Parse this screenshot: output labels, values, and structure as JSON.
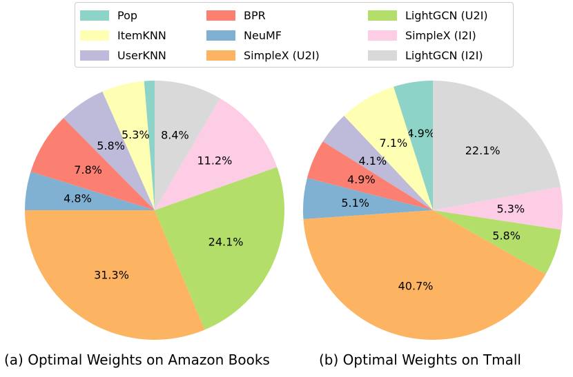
{
  "legend": [
    {
      "label": "Pop",
      "color": "#8dd3c7"
    },
    {
      "label": "ItemKNN",
      "color": "#ffffb3"
    },
    {
      "label": "UserKNN",
      "color": "#bebada"
    },
    {
      "label": "BPR",
      "color": "#fb8072"
    },
    {
      "label": "NeuMF",
      "color": "#80b1d3"
    },
    {
      "label": "SimpleX (U2I)",
      "color": "#fdb462"
    },
    {
      "label": "LightGCN (U2I)",
      "color": "#b3de69"
    },
    {
      "label": "SimpleX (I2I)",
      "color": "#fccde5"
    },
    {
      "label": "LightGCN (I2I)",
      "color": "#d9d9d9"
    }
  ],
  "chart_data": [
    {
      "type": "pie",
      "title": "(a) Optimal Weights on Amazon Books",
      "labels": [
        "Pop",
        "ItemKNN",
        "UserKNN",
        "BPR",
        "NeuMF",
        "SimpleX (U2I)",
        "LightGCN (U2I)",
        "SimpleX (I2I)",
        "LightGCN (I2I)"
      ],
      "values": [
        1.3,
        5.3,
        5.8,
        7.8,
        4.8,
        31.3,
        24.1,
        11.2,
        8.4
      ],
      "value_labels": [
        "",
        "5.3%",
        "5.8%",
        "7.8%",
        "4.8%",
        "31.3%",
        "24.1%",
        "11.2%",
        "8.4%"
      ]
    },
    {
      "type": "pie",
      "title": "(b) Optimal Weights on Tmall",
      "labels": [
        "Pop",
        "ItemKNN",
        "UserKNN",
        "BPR",
        "NeuMF",
        "SimpleX (U2I)",
        "LightGCN (U2I)",
        "SimpleX (I2I)",
        "LightGCN (I2I)"
      ],
      "values": [
        4.9,
        7.1,
        4.1,
        4.9,
        5.1,
        40.7,
        5.8,
        5.3,
        22.1
      ],
      "value_labels": [
        "4.9%",
        "7.1%",
        "4.1%",
        "4.9%",
        "5.1%",
        "40.7%",
        "5.8%",
        "5.3%",
        "22.1%"
      ]
    }
  ]
}
